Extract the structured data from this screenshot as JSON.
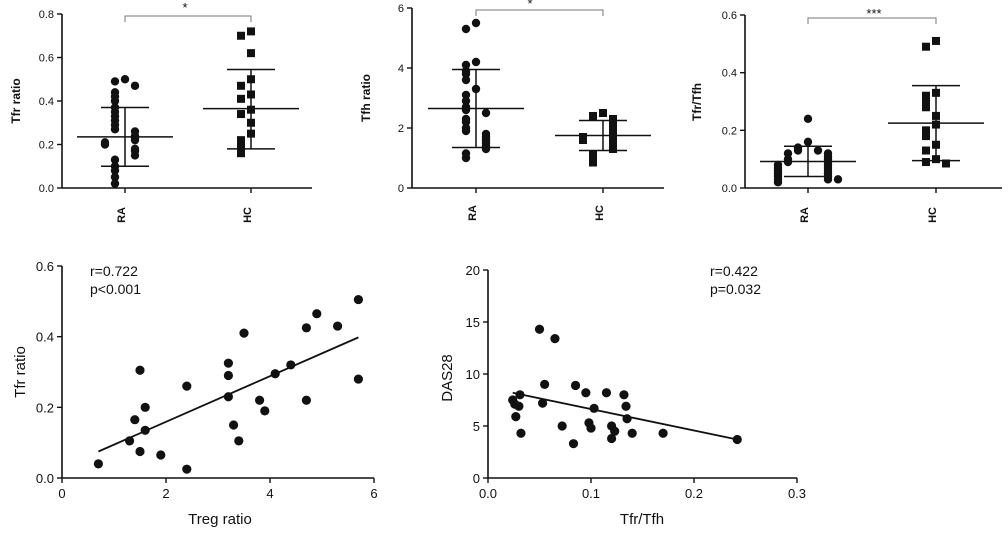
{
  "chart_data": [
    {
      "type": "scatter",
      "ylabel": "Tfr ratio",
      "ylim": [
        0,
        0.8
      ],
      "yticks": [
        "0.0",
        "0.2",
        "0.4",
        "0.6",
        "0.8"
      ],
      "categories": [
        "RA",
        "HC"
      ],
      "significance": "*",
      "series": [
        {
          "category": "RA",
          "marker": "circle",
          "mean": 0.235,
          "sd_low": 0.1,
          "sd_high": 0.37,
          "values": [
            0.5,
            0.49,
            0.47,
            0.44,
            0.42,
            0.4,
            0.37,
            0.35,
            0.33,
            0.31,
            0.29,
            0.27,
            0.26,
            0.24,
            0.23,
            0.22,
            0.21,
            0.2,
            0.18,
            0.17,
            0.15,
            0.13,
            0.1,
            0.08,
            0.05,
            0.02
          ]
        },
        {
          "category": "HC",
          "marker": "square",
          "mean": 0.365,
          "sd_low": 0.18,
          "sd_high": 0.545,
          "values": [
            0.72,
            0.7,
            0.62,
            0.5,
            0.47,
            0.43,
            0.41,
            0.36,
            0.34,
            0.3,
            0.25,
            0.22,
            0.2,
            0.18,
            0.16
          ]
        }
      ]
    },
    {
      "type": "scatter",
      "ylabel": "Tfh ratio",
      "ylim": [
        0,
        6
      ],
      "yticks": [
        "0",
        "2",
        "4",
        "6"
      ],
      "categories": [
        "RA",
        "HC"
      ],
      "significance": "*",
      "series": [
        {
          "category": "RA",
          "marker": "circle",
          "mean": 2.65,
          "sd_low": 1.35,
          "sd_high": 3.95,
          "values": [
            5.5,
            5.3,
            4.2,
            4.1,
            3.9,
            3.8,
            3.6,
            3.3,
            3.1,
            2.9,
            2.7,
            2.6,
            2.5,
            2.3,
            2.2,
            2.0,
            1.9,
            1.8,
            1.7,
            1.6,
            1.5,
            1.4,
            1.3,
            1.15,
            1.0
          ]
        },
        {
          "category": "HC",
          "marker": "square",
          "mean": 1.75,
          "sd_low": 1.25,
          "sd_high": 2.25,
          "values": [
            2.5,
            2.4,
            2.3,
            2.2,
            2.1,
            2.0,
            1.9,
            1.8,
            1.75,
            1.7,
            1.6,
            1.5,
            1.4,
            1.3,
            1.1,
            1.0,
            0.85
          ]
        }
      ]
    },
    {
      "type": "scatter",
      "ylabel": "Tfr/Tfh",
      "ylim": [
        0,
        0.6
      ],
      "yticks": [
        "0.0",
        "0.2",
        "0.4",
        "0.6"
      ],
      "categories": [
        "RA",
        "HC"
      ],
      "significance": "***",
      "series": [
        {
          "category": "RA",
          "marker": "circle",
          "mean": 0.092,
          "sd_low": 0.04,
          "sd_high": 0.145,
          "values": [
            0.24,
            0.16,
            0.14,
            0.13,
            0.13,
            0.12,
            0.12,
            0.11,
            0.1,
            0.1,
            0.09,
            0.09,
            0.08,
            0.08,
            0.07,
            0.07,
            0.06,
            0.06,
            0.05,
            0.05,
            0.04,
            0.04,
            0.03,
            0.03,
            0.03,
            0.02
          ]
        },
        {
          "category": "HC",
          "marker": "square",
          "mean": 0.225,
          "sd_low": 0.095,
          "sd_high": 0.355,
          "values": [
            0.51,
            0.49,
            0.33,
            0.32,
            0.3,
            0.28,
            0.25,
            0.22,
            0.2,
            0.18,
            0.15,
            0.13,
            0.1,
            0.09,
            0.085
          ]
        }
      ]
    },
    {
      "type": "scatter",
      "xlabel": "Treg ratio",
      "ylabel": "Tfr ratio",
      "xlim": [
        0,
        6
      ],
      "ylim": [
        0,
        0.6
      ],
      "xticks": [
        "0",
        "2",
        "4",
        "6"
      ],
      "yticks": [
        "0.0",
        "0.2",
        "0.4",
        "0.6"
      ],
      "annotation": [
        "r=0.722",
        "p<0.001"
      ],
      "fit_line": [
        [
          0.7,
          0.075
        ],
        [
          5.7,
          0.398
        ]
      ],
      "points": [
        [
          0.7,
          0.04
        ],
        [
          1.3,
          0.105
        ],
        [
          1.4,
          0.165
        ],
        [
          1.5,
          0.305
        ],
        [
          1.5,
          0.075
        ],
        [
          1.6,
          0.135
        ],
        [
          1.6,
          0.2
        ],
        [
          1.9,
          0.065
        ],
        [
          2.4,
          0.26
        ],
        [
          2.4,
          0.025
        ],
        [
          3.2,
          0.29
        ],
        [
          3.2,
          0.23
        ],
        [
          3.2,
          0.325
        ],
        [
          3.3,
          0.15
        ],
        [
          3.4,
          0.105
        ],
        [
          3.5,
          0.41
        ],
        [
          3.8,
          0.22
        ],
        [
          3.9,
          0.19
        ],
        [
          4.1,
          0.295
        ],
        [
          4.4,
          0.32
        ],
        [
          4.7,
          0.22
        ],
        [
          4.7,
          0.425
        ],
        [
          4.9,
          0.465
        ],
        [
          5.3,
          0.43
        ],
        [
          5.7,
          0.505
        ],
        [
          5.7,
          0.28
        ]
      ]
    },
    {
      "type": "scatter",
      "xlabel": "Tfr/Tfh",
      "ylabel": "DAS28",
      "xlim": [
        0,
        0.3
      ],
      "ylim": [
        0,
        20
      ],
      "xticks": [
        "0.0",
        "0.1",
        "0.2",
        "0.3"
      ],
      "yticks": [
        "0",
        "5",
        "10",
        "15",
        "20"
      ],
      "annotation": [
        "r=0.422",
        "p=0.032"
      ],
      "fit_line": [
        [
          0.024,
          8.2
        ],
        [
          0.242,
          3.7
        ]
      ],
      "points": [
        [
          0.024,
          7.5
        ],
        [
          0.026,
          7.1
        ],
        [
          0.027,
          5.9
        ],
        [
          0.03,
          6.9
        ],
        [
          0.031,
          8.0
        ],
        [
          0.032,
          4.3
        ],
        [
          0.05,
          14.3
        ],
        [
          0.053,
          7.2
        ],
        [
          0.055,
          9.0
        ],
        [
          0.065,
          13.4
        ],
        [
          0.072,
          5.0
        ],
        [
          0.083,
          3.3
        ],
        [
          0.085,
          8.9
        ],
        [
          0.095,
          8.2
        ],
        [
          0.098,
          5.3
        ],
        [
          0.1,
          4.8
        ],
        [
          0.103,
          6.7
        ],
        [
          0.115,
          8.2
        ],
        [
          0.12,
          5.0
        ],
        [
          0.12,
          3.8
        ],
        [
          0.123,
          4.5
        ],
        [
          0.132,
          8.0
        ],
        [
          0.134,
          6.9
        ],
        [
          0.135,
          5.7
        ],
        [
          0.14,
          4.3
        ],
        [
          0.17,
          4.3
        ],
        [
          0.242,
          3.7
        ]
      ]
    }
  ]
}
